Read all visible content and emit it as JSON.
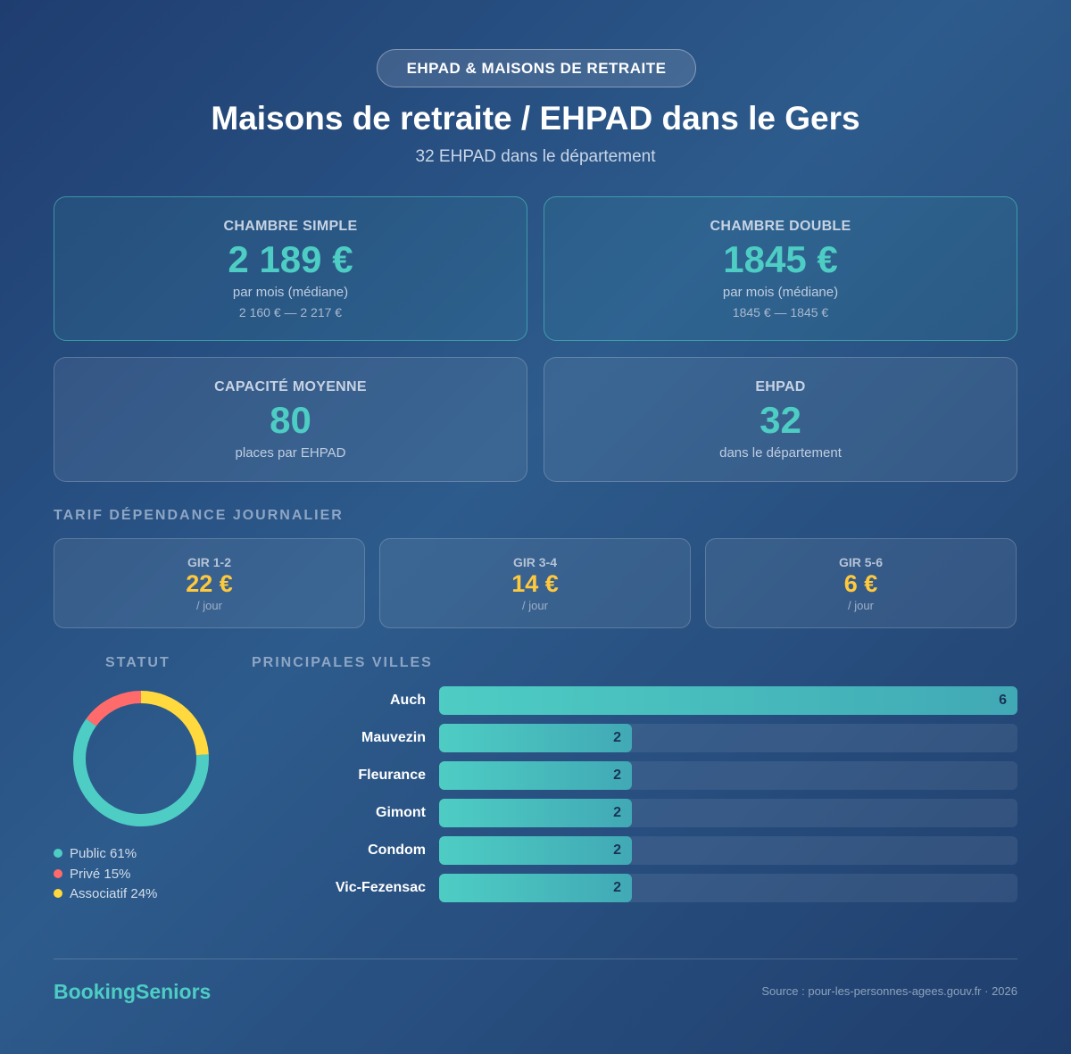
{
  "header": {
    "badge": "EHPAD & MAISONS DE RETRAITE",
    "title": "Maisons de retraite / EHPAD dans le Gers",
    "subtitle": "32 EHPAD dans le département"
  },
  "cards": [
    {
      "label": "CHAMBRE SIMPLE",
      "value": "2 189 €",
      "note": "par mois (médiane)",
      "range": "2 160 € — 2 217 €"
    },
    {
      "label": "CHAMBRE DOUBLE",
      "value": "1845 €",
      "note": "par mois (médiane)",
      "range": "1845 € — 1845 €"
    },
    {
      "label": "CAPACITÉ MOYENNE",
      "value": "80",
      "note": "places par EHPAD"
    },
    {
      "label": "EHPAD",
      "value": "32",
      "note": "dans le département"
    }
  ],
  "tarif": {
    "title": "TARIF DÉPENDANCE JOURNALIER",
    "cards": [
      {
        "label": "GIR 1-2",
        "value": "22 €",
        "unit": "/ jour"
      },
      {
        "label": "GIR 3-4",
        "value": "14 €",
        "unit": "/ jour"
      },
      {
        "label": "GIR 5-6",
        "value": "6 €",
        "unit": "/ jour"
      }
    ]
  },
  "chart_data": [
    {
      "type": "pie",
      "title": "STATUT",
      "donut": true,
      "categories": [
        "Public",
        "Privé",
        "Associatif"
      ],
      "values": [
        61,
        15,
        24
      ],
      "value_labels": [
        "61%",
        "15%",
        "24%"
      ],
      "colors": [
        "#4ecdc4",
        "#ff6b6b",
        "#ffd93d"
      ]
    },
    {
      "type": "bar",
      "title": "PRINCIPALES VILLES",
      "categories": [
        "Auch",
        "Mauvezin",
        "Fleurance",
        "Gimont",
        "Condom",
        "Vic-Fezensac"
      ],
      "values": [
        6,
        2,
        2,
        2,
        2,
        2
      ],
      "color": "#4ecdc4"
    }
  ],
  "footer": {
    "brand": "BookingSeniors",
    "source": "Source : pour-les-personnes-agees.gouv.fr · 2026"
  }
}
